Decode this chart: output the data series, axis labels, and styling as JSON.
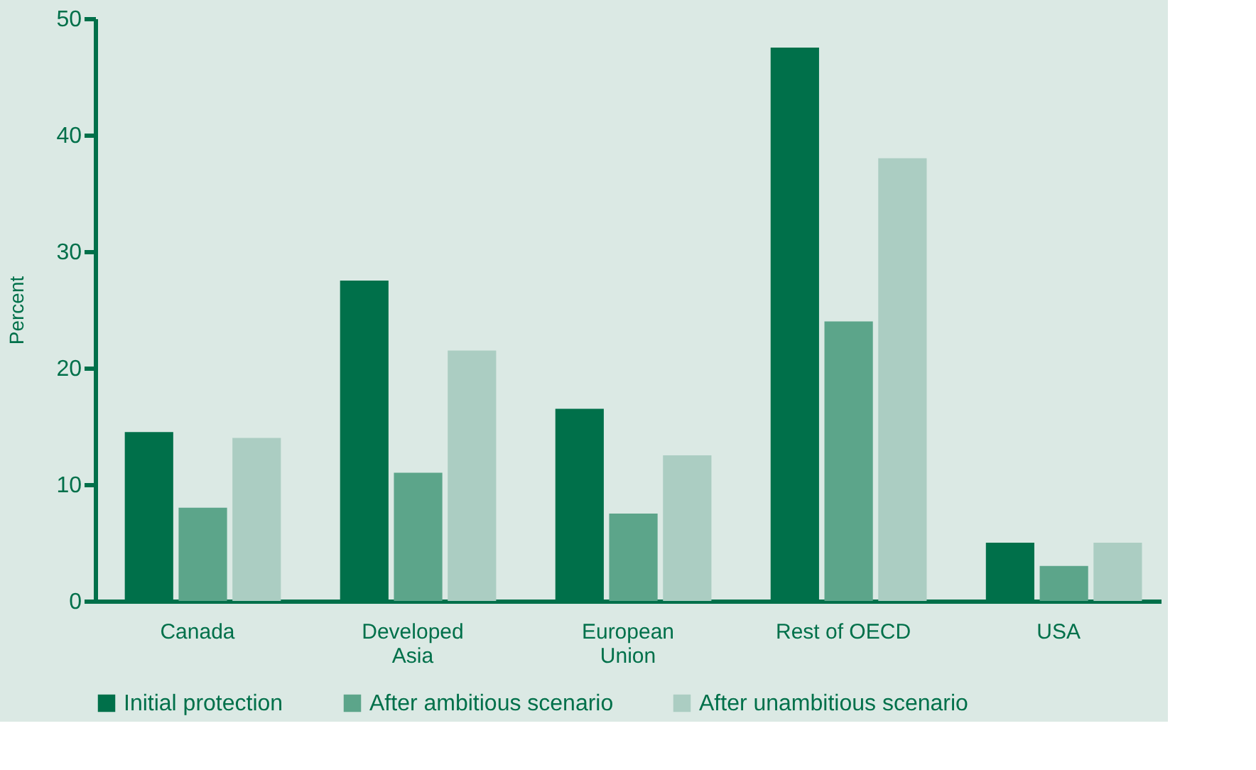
{
  "chart_data": {
    "type": "bar",
    "ylabel": "Percent",
    "categories": [
      "Canada",
      "Developed\nAsia",
      "European\nUnion",
      "Rest of OECD",
      "USA"
    ],
    "series": [
      {
        "name": "Initial protection",
        "color": "#00704a",
        "values": [
          14.5,
          27.5,
          16.5,
          47.5,
          5
        ]
      },
      {
        "name": "After ambitious scenario",
        "color": "#5ca58a",
        "values": [
          8,
          11,
          7.5,
          24,
          3
        ]
      },
      {
        "name": "After unambitious scenario",
        "color": "#abcdc2",
        "values": [
          14,
          21.5,
          12.5,
          38,
          5
        ]
      }
    ],
    "ylim": [
      0,
      50
    ],
    "yticks": [
      0,
      10,
      20,
      30,
      40,
      50
    ],
    "grid": false,
    "legend": "bottom"
  }
}
